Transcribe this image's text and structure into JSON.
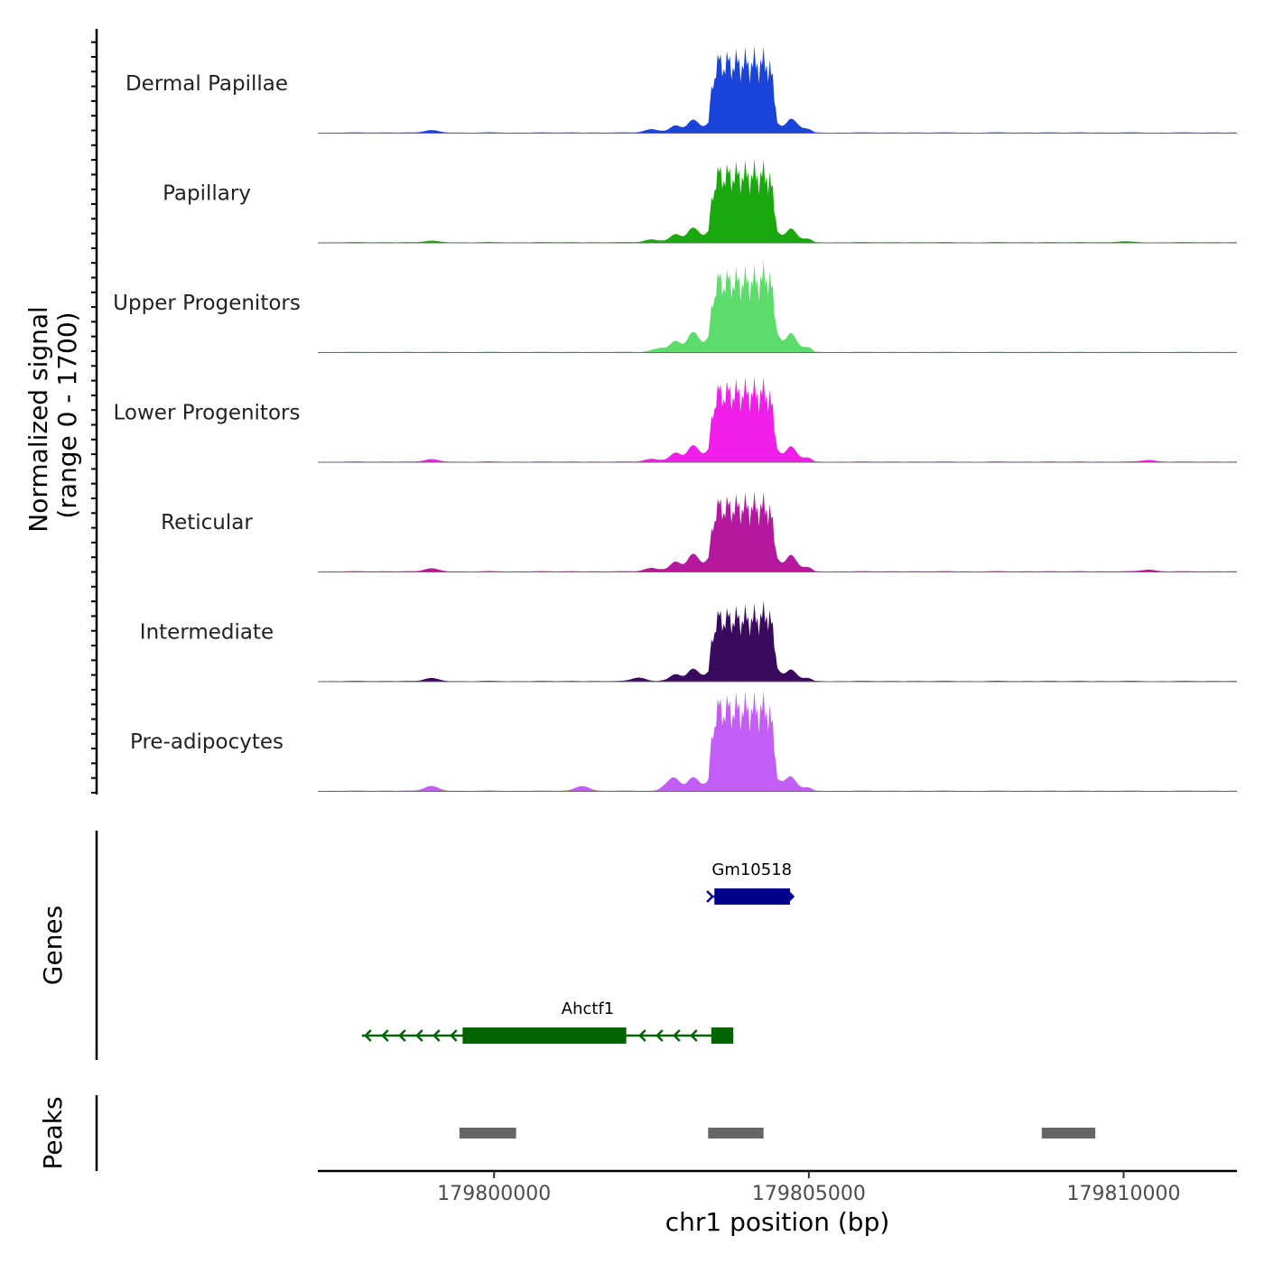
{
  "chart_data": {
    "type": "area",
    "chromosome": "chr1",
    "xlim": [
      179797200,
      179811800
    ],
    "coverage": {
      "ylabel_line1": "Normalized signal",
      "ylabel_line2": "(range 0 - 1700)",
      "ylim": [
        0,
        1700
      ],
      "peak_window": [
        179803400,
        179804500
      ],
      "tracks": [
        {
          "name": "Dermal Papillae",
          "color": "#1a44d9",
          "peak_max": 1480,
          "shoulder": 220,
          "bumps": [
            [
              179799000,
              40
            ],
            [
              179802500,
              60
            ],
            [
              179804800,
              40
            ]
          ]
        },
        {
          "name": "Papillary",
          "color": "#1aa80f",
          "peak_max": 1430,
          "shoulder": 250,
          "bumps": [
            [
              179799000,
              25
            ],
            [
              179802500,
              50
            ],
            [
              179810000,
              15
            ]
          ]
        },
        {
          "name": "Upper Progenitors",
          "color": "#5cdc6b",
          "peak_max": 1500,
          "shoulder": 340,
          "bumps": [
            [
              179802600,
              60
            ],
            [
              179804400,
              110
            ]
          ]
        },
        {
          "name": "Lower Progenitors",
          "color": "#f01ee8",
          "peak_max": 1460,
          "shoulder": 280,
          "bumps": [
            [
              179799000,
              40
            ],
            [
              179802500,
              50
            ],
            [
              179810400,
              30
            ]
          ]
        },
        {
          "name": "Reticular",
          "color": "#b3189f",
          "peak_max": 1370,
          "shoulder": 300,
          "bumps": [
            [
              179799000,
              50
            ],
            [
              179802500,
              60
            ],
            [
              179810400,
              30
            ]
          ]
        },
        {
          "name": "Intermediate",
          "color": "#3a0a5e",
          "peak_max": 1330,
          "shoulder": 210,
          "bumps": [
            [
              179799000,
              50
            ],
            [
              179802300,
              60
            ],
            [
              179804400,
              100
            ]
          ]
        },
        {
          "name": "Pre-adipocytes",
          "color": "#c25df5",
          "peak_max": 1740,
          "shoulder": 230,
          "bumps": [
            [
              179799000,
              80
            ],
            [
              179801400,
              80
            ],
            [
              179802800,
              120
            ],
            [
              179804600,
              50
            ]
          ]
        }
      ]
    },
    "genes": {
      "label": "Genes",
      "items": [
        {
          "name": "Gm10518",
          "color": "#00008b",
          "start": 179803440,
          "end": 179804750,
          "strand": "+",
          "thick_start": 179803500,
          "thick_end": 179804700,
          "row": 1
        },
        {
          "name": "Ahctf1",
          "color": "#006400",
          "start": 179797900,
          "end": 179803800,
          "strand": "-",
          "blocks": [
            [
              179799500,
              179802100
            ],
            [
              179803450,
              179803800
            ]
          ],
          "row": 2
        }
      ]
    },
    "peaks": {
      "label": "Peaks",
      "color": "#666666",
      "items": [
        [
          179799450,
          179800350
        ],
        [
          179803400,
          179804280
        ],
        [
          179808700,
          179809550
        ]
      ]
    },
    "xaxis": {
      "title": "chr1 position (bp)",
      "ticks": [
        179800000,
        179805000,
        179810000
      ],
      "tick_labels": [
        "179800000",
        "179805000",
        "179810000"
      ]
    }
  }
}
